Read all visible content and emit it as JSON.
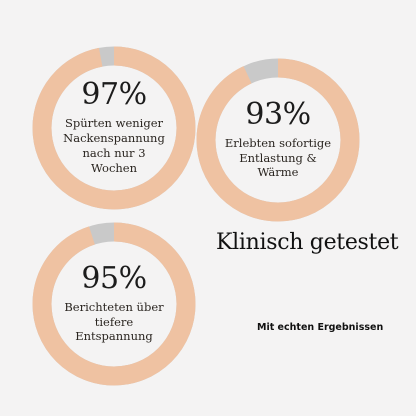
{
  "chart_data": [
    {
      "type": "pie",
      "value": 97,
      "value_label": "97%",
      "description": "Spürten weniger Nackenspannung nach nur 3 Wochen"
    },
    {
      "type": "pie",
      "value": 93,
      "value_label": "93%",
      "description": "Erlebten sofortige Entlastung & Wärme"
    },
    {
      "type": "pie",
      "value": 95,
      "value_label": "95%",
      "description": "Berichteten über tiefere Entspannung"
    }
  ],
  "headline": "Klinisch getestet",
  "subline": "Mit echten Ergebnissen",
  "colors": {
    "fill": "#efc2a2",
    "track": "#c9c9c9",
    "background": "#f4f3f3"
  }
}
